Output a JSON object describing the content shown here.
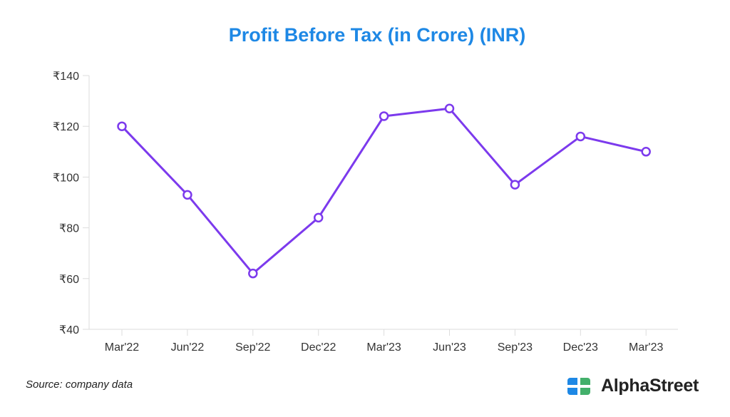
{
  "chart_data": {
    "type": "line",
    "title": "Profit Before Tax (in Crore) (INR)",
    "xlabel": "",
    "ylabel": "",
    "categories": [
      "Mar'22",
      "Jun'22",
      "Sep'22",
      "Dec'22",
      "Mar'23",
      "Jun'23",
      "Sep'23",
      "Dec'23",
      "Mar'23"
    ],
    "series": [
      {
        "name": "Profit Before Tax",
        "values": [
          120,
          93,
          62,
          84,
          124,
          127,
          97,
          116,
          110
        ],
        "color": "#7c3aed"
      }
    ],
    "ylim": [
      40,
      140
    ],
    "yticks": [
      40,
      60,
      80,
      100,
      120,
      140
    ],
    "ytick_prefix": "₹",
    "grid": false
  },
  "footer": {
    "source": "Source: company data",
    "brand": "AlphaStreet"
  },
  "colors": {
    "title": "#1e88e5",
    "line": "#7c3aed",
    "logo_blue": "#1e88e5",
    "logo_green": "#43b06b"
  }
}
